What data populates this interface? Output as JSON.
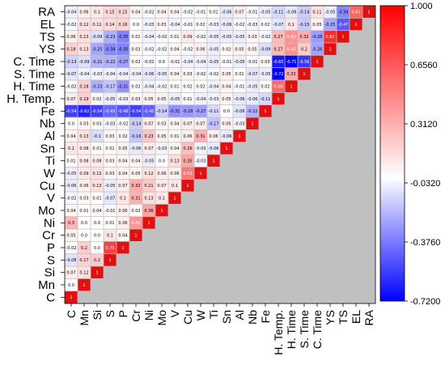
{
  "chart_data": {
    "type": "heatmap",
    "variables": [
      "C",
      "Mn",
      "Si",
      "S",
      "P",
      "Cr",
      "Ni",
      "Mo",
      "V",
      "Cu",
      "W",
      "Ti",
      "Sn",
      "Al",
      "Nb",
      "Fe",
      "H. Temp.",
      "H. Time",
      "S. Time",
      "C. Time",
      "YS",
      "TS",
      "EL",
      "RA"
    ],
    "lower_triangle_rows": [
      [],
      [
        0
      ],
      [
        0.07,
        0.12
      ],
      [
        -0.08,
        0.17,
        0.2
      ],
      [
        -0.02,
        0.2,
        0.0,
        0.75
      ],
      [
        0.05,
        0.0,
        0.0,
        0.1,
        0.04
      ],
      [
        0.3,
        0.0,
        0.0,
        0.01,
        0.06,
        0.41
      ],
      [
        0.04,
        0.01,
        0.04,
        -0.01,
        0.06,
        0.02,
        0.36
      ],
      [
        -0.02,
        0.03,
        0.01,
        -0.07,
        0.1,
        0.31,
        0.13,
        0.1
      ],
      [
        -0.06,
        0.06,
        0.13,
        -0.05,
        0.07,
        0.32,
        0.21,
        0.07,
        0.1
      ],
      [
        -0.05,
        0.09,
        0.12,
        0.03,
        0.04,
        0.05,
        0.12,
        0.06,
        0.06,
        0.53
      ],
      [
        0.01,
        0.08,
        0.08,
        0.03,
        0.04,
        0.04,
        -0.05,
        0.0,
        0.13,
        0.35,
        -0.03
      ],
      [
        0.1,
        0.08,
        0.01,
        0.01,
        0.05,
        -0.06,
        0.07,
        -0.03,
        0.04,
        0.26,
        -0.03,
        -0.06
      ],
      [
        0.04,
        0.13,
        -0.1,
        0.03,
        0.02,
        -0.16,
        0.23,
        0.05,
        0.01,
        0.06,
        0.31,
        0.06,
        -0.06
      ],
      [
        0.0,
        0.03,
        0.03,
        -0.03,
        -0.02,
        -0.14,
        0.07,
        0.03,
        0.04,
        0.07,
        0.07,
        -0.17,
        0.05,
        -0.03
      ],
      [
        -0.54,
        -0.62,
        -0.54,
        -0.43,
        -0.48,
        -0.54,
        -0.45,
        -0.14,
        -0.31,
        -0.29,
        -0.27,
        -0.11,
        0.0,
        -0.08,
        -0.22
      ],
      [
        0.07,
        0.19,
        0.02,
        -0.05,
        -0.03,
        0.03,
        0.05,
        0.05,
        -0.05,
        0.01,
        -0.04,
        -0.03,
        0.05,
        -0.06,
        -0.06,
        -0.11
      ],
      [
        -0.02,
        0.18,
        -0.23,
        -0.17,
        -0.31,
        0.02,
        -0.04,
        -0.02,
        0.01,
        0.02,
        0.02,
        -0.04,
        0.04,
        -0.01,
        -0.05,
        0.02,
        0.58
      ],
      [
        -0.07,
        -0.04,
        -0.03,
        -0.04,
        -0.04,
        -0.04,
        -0.06,
        -0.05,
        0.04,
        0.03,
        -0.02,
        -0.02,
        0.05,
        0.01,
        -0.07,
        -0.05,
        -0.72,
        0.33
      ],
      [
        -0.13,
        -0.09,
        -0.21,
        -0.22,
        -0.27,
        0.02,
        -0.02,
        0.0,
        -0.01,
        -0.04,
        -0.04,
        -0.05,
        -0.01,
        -0.05,
        -0.01,
        0.03,
        -0.65,
        -0.71,
        -0.56
      ],
      [
        0.18,
        0.13,
        -0.25,
        -0.34,
        -0.35,
        0.03,
        -0.02,
        -0.02,
        0.04,
        -0.02,
        0.06,
        -0.05,
        0.02,
        0.05,
        0.05,
        -0.09,
        0.27,
        0.43,
        0.2,
        -0.26
      ],
      [
        0.06,
        0.13,
        -0.09,
        -0.23,
        -0.35,
        0.01,
        -0.04,
        -0.02,
        0.01,
        0.09,
        -0.02,
        -0.05,
        -0.05,
        -0.05,
        0.03,
        -0.02,
        0.27,
        0.42,
        0.32,
        -0.28,
        0.82
      ],
      [
        -0.02,
        0.12,
        0.12,
        0.14,
        0.16,
        0.0,
        -0.03,
        0.03,
        -0.04,
        -0.01,
        0.02,
        -0.03,
        -0.06,
        -0.02,
        -0.03,
        0.02,
        -0.07,
        0.1,
        -0.15,
        0.05,
        -0.25,
        -0.47
      ],
      [
        -0.04,
        0.06,
        0.1,
        0.15,
        0.15,
        0.04,
        -0.02,
        0.04,
        0.04,
        -0.02,
        -0.01,
        0.01,
        -0.06,
        0.07,
        -0.01,
        -0.05,
        -0.11,
        -0.06,
        -0.14,
        0.11,
        -0.05,
        -0.34,
        0.61
      ]
    ],
    "diagonal_value": "1",
    "colorbar": {
      "range": [
        -0.72,
        1.0
      ],
      "ticks": [
        "1.000",
        "0.6560",
        "0.3120",
        "-0.0320",
        "-0.3760",
        "-0.7200"
      ],
      "colors": {
        "high": "#ff0000",
        "mid": "#ffffff",
        "low": "#0000ff"
      }
    },
    "upper_triangle_color": "#c0c0c0"
  }
}
